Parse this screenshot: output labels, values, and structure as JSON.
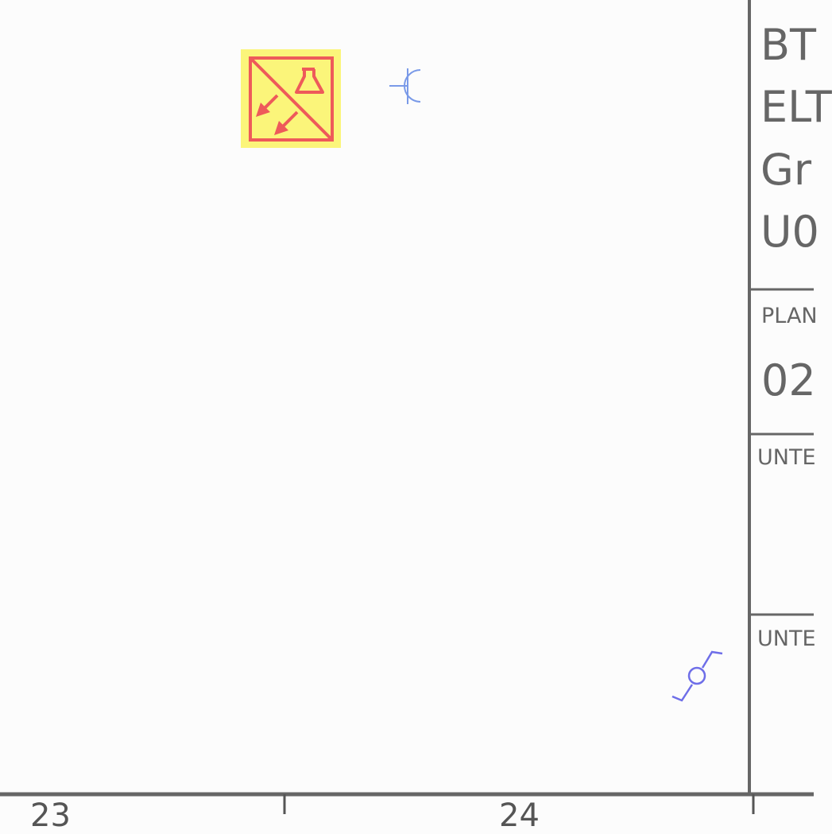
{
  "title_block": {
    "project_lines": [
      "BT",
      "ELT",
      "Gr",
      "U0"
    ],
    "plan_label": "PLAN",
    "plan_value": "02",
    "sign_label_1": "UNTE",
    "sign_label_2": "UNTE"
  },
  "grid_columns": {
    "left_number": "23",
    "right_number": "24"
  },
  "symbols": {
    "equipment_box": {
      "icon": "plug-appliance-symbol",
      "fill_color": "#fbf57a",
      "stroke_color": "#ee5a5a"
    },
    "socket_outlet": {
      "icon": "socket-outlet-symbol",
      "color": "#7a9ae8"
    },
    "switch": {
      "icon": "switch-symbol",
      "color": "#6e6ee8"
    }
  },
  "frame_color": "#666666"
}
